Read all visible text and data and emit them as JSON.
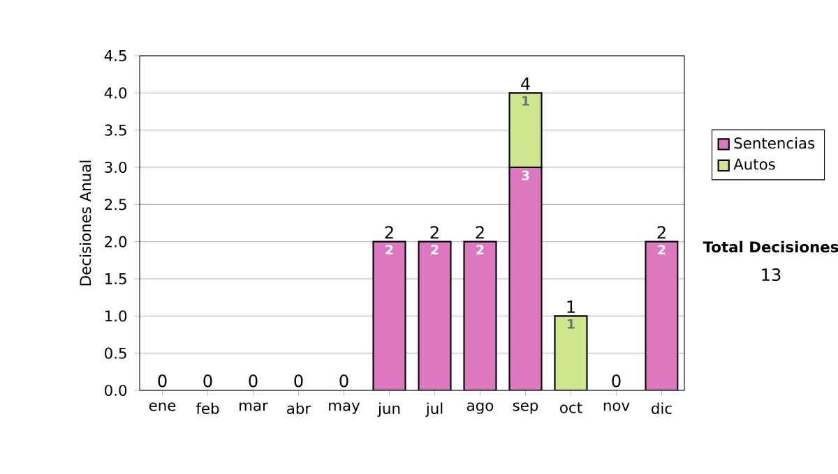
{
  "chart_data": {
    "type": "bar",
    "stacked": true,
    "ylabel": "Decisiones Anual",
    "categories": [
      "ene",
      "feb",
      "mar",
      "abr",
      "may",
      "jun",
      "jul",
      "ago",
      "sep",
      "oct",
      "nov",
      "dic"
    ],
    "series": [
      {
        "name": "Sentencias",
        "color": "#dd77c0",
        "values": [
          0,
          0,
          0,
          0,
          0,
          2,
          2,
          2,
          3,
          0,
          0,
          2
        ],
        "value_labels": [
          null,
          null,
          null,
          null,
          null,
          "2",
          "2",
          "2",
          "3",
          null,
          null,
          "2"
        ]
      },
      {
        "name": "Autos",
        "color": "#cfe68c",
        "values": [
          0,
          0,
          0,
          0,
          0,
          0,
          0,
          0,
          1,
          1,
          0,
          0
        ],
        "value_labels": [
          null,
          null,
          null,
          null,
          null,
          null,
          null,
          null,
          "1",
          "1",
          null,
          null
        ]
      }
    ],
    "totals": [
      "0",
      "0",
      "0",
      "0",
      "0",
      "2",
      "2",
      "2",
      "4",
      "1",
      "0",
      "2"
    ],
    "ylim": [
      0,
      4.5
    ],
    "yticks": [
      {
        "value": 0,
        "label": "0.0"
      },
      {
        "value": 0.5,
        "label": "0.5"
      },
      {
        "value": 1,
        "label": "1.0"
      },
      {
        "value": 1.5,
        "label": "1.5"
      },
      {
        "value": 2,
        "label": "2.0"
      },
      {
        "value": 2.5,
        "label": "2.5"
      },
      {
        "value": 3,
        "label": "3.0"
      },
      {
        "value": 3.5,
        "label": "3.5"
      },
      {
        "value": 4,
        "label": "4.0"
      },
      {
        "value": 4.5,
        "label": "4.5"
      }
    ],
    "grid": "y",
    "legend": "right",
    "annotations": [
      "Total Decisiones",
      "13"
    ]
  }
}
